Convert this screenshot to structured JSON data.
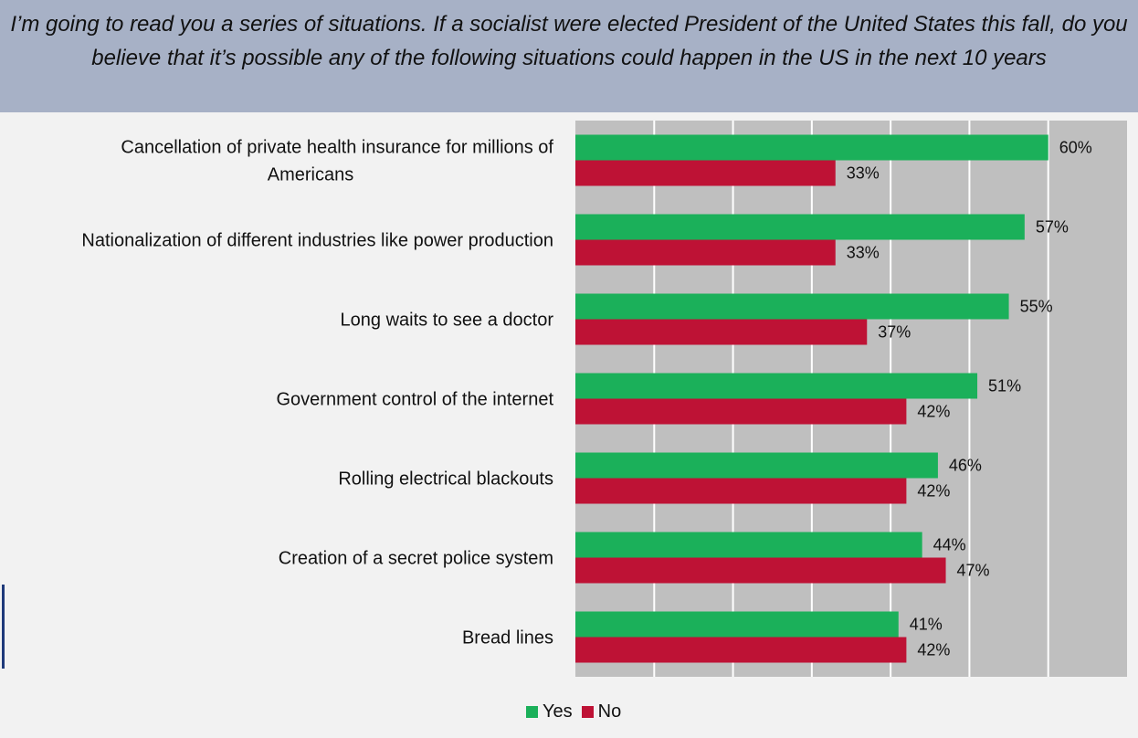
{
  "title": "I’m going to read you a series of situations. If a socialist were elected President of the United States this fall, do you believe that it’s possible any of the following situations could happen in the US in the next 10 years",
  "chart_data": {
    "type": "bar",
    "orientation": "horizontal",
    "categories": [
      [
        "Cancellation of private health insurance for millions of",
        "Americans"
      ],
      [
        "Nationalization of different industries like power production"
      ],
      [
        "Long waits to see a doctor"
      ],
      [
        "Government control of the internet"
      ],
      [
        "Rolling electrical blackouts"
      ],
      [
        "Creation of a secret police system"
      ],
      [
        "Bread lines"
      ]
    ],
    "series": [
      {
        "name": "Yes",
        "color": "#1bb05a",
        "values": [
          60,
          57,
          55,
          51,
          46,
          44,
          41
        ]
      },
      {
        "name": "No",
        "color": "#be1235",
        "values": [
          33,
          33,
          37,
          42,
          42,
          47,
          42
        ]
      }
    ],
    "xlim": [
      0,
      70
    ],
    "grid": true,
    "legend": "bottom-center",
    "value_suffix": "%"
  }
}
